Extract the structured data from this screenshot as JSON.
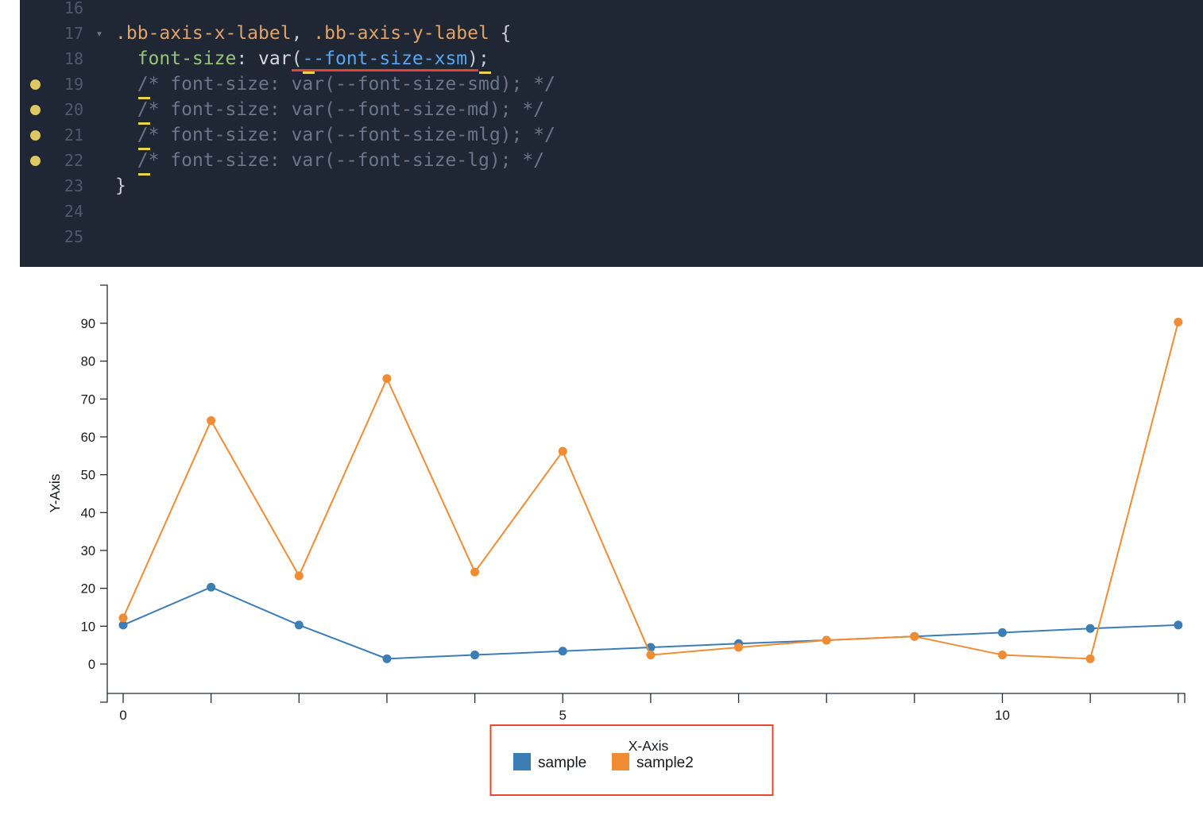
{
  "editor": {
    "colors": {
      "background": "#1e2733",
      "line_number": "#4e5a6c",
      "breakpoint_dot": "#ddc763",
      "error_underline": "#e0452f",
      "warning_underline": "#e8d44f",
      "fold_arrow": "#6e7684",
      "tokens": {
        "selector": "#e2a368",
        "punct": "#c7cdd8",
        "prop": "#98c379",
        "fn": "#d7dae0",
        "varname": "#58a6f2",
        "comment": "#6b7689"
      }
    },
    "lines": [
      {
        "number": "16",
        "tokens": []
      },
      {
        "number": "17",
        "fold": true,
        "tokens": [
          {
            "type": "selector",
            "text": ".bb-axis-x-label"
          },
          {
            "type": "punct",
            "text": ", "
          },
          {
            "type": "selector",
            "text": ".bb-axis-y-label"
          },
          {
            "type": "punct",
            "text": " {"
          }
        ]
      },
      {
        "number": "18",
        "tokens": [
          {
            "type": "prop",
            "text": "  font-size"
          },
          {
            "type": "punct",
            "text": ": "
          },
          {
            "type": "fn",
            "text": "var"
          },
          {
            "type": "punct",
            "text": "(",
            "u": [
              "red"
            ]
          },
          {
            "type": "varname",
            "text": "--",
            "u": [
              "red",
              "yellow"
            ]
          },
          {
            "type": "varname",
            "text": "font-size-xsm",
            "u": [
              "red"
            ]
          },
          {
            "type": "punct",
            "text": ")",
            "u": [
              "red"
            ]
          },
          {
            "type": "punct",
            "text": ";",
            "u": [
              "yellow"
            ]
          }
        ]
      },
      {
        "number": "19",
        "breakpoint": true,
        "tokens": [
          {
            "type": "comment",
            "text": "  "
          },
          {
            "type": "comment",
            "text": "/",
            "u": [
              "yellow"
            ]
          },
          {
            "type": "comment",
            "text": "* font-size: var(--font-size-smd); */"
          }
        ]
      },
      {
        "number": "20",
        "breakpoint": true,
        "tokens": [
          {
            "type": "comment",
            "text": "  "
          },
          {
            "type": "comment",
            "text": "/",
            "u": [
              "yellow"
            ]
          },
          {
            "type": "comment",
            "text": "* font-size: var(--font-size-md); */"
          }
        ]
      },
      {
        "number": "21",
        "breakpoint": true,
        "tokens": [
          {
            "type": "comment",
            "text": "  "
          },
          {
            "type": "comment",
            "text": "/",
            "u": [
              "yellow"
            ]
          },
          {
            "type": "comment",
            "text": "* font-size: var(--font-size-mlg); */"
          }
        ]
      },
      {
        "number": "22",
        "breakpoint": true,
        "tokens": [
          {
            "type": "comment",
            "text": "  "
          },
          {
            "type": "comment",
            "text": "/",
            "u": [
              "yellow"
            ]
          },
          {
            "type": "comment",
            "text": "* font-size: var(--font-size-lg); */"
          }
        ]
      },
      {
        "number": "23",
        "tokens": [
          {
            "type": "punct",
            "text": "}"
          }
        ]
      },
      {
        "number": "24",
        "tokens": []
      },
      {
        "number": "25",
        "tokens": []
      }
    ]
  },
  "chart_data": {
    "type": "line",
    "title": "",
    "xlabel": "X-Axis",
    "ylabel": "Y-Axis",
    "x": [
      0,
      1,
      2,
      3,
      4,
      5,
      6,
      7,
      8,
      9,
      10,
      11,
      12
    ],
    "x_tick_labels": [
      {
        "value": 0,
        "label": "0"
      },
      {
        "value": 5,
        "label": "5"
      },
      {
        "value": 10,
        "label": "10"
      }
    ],
    "y_ticks": [
      0,
      10,
      20,
      30,
      40,
      50,
      60,
      70,
      80,
      90
    ],
    "ylim": [
      0,
      94
    ],
    "grid": false,
    "legend_position": "bottom",
    "axis_color": "#262b33",
    "text_color": "#16181d",
    "legend_highlight_color": "#e8472b",
    "series": [
      {
        "name": "sample",
        "color": "#3d7db5",
        "values": [
          10.3,
          20.3,
          10.3,
          1.4,
          2.4,
          3.4,
          4.4,
          5.4,
          6.3,
          7.3,
          8.3,
          9.4,
          10.3
        ]
      },
      {
        "name": "sample2",
        "color": "#f08c33",
        "values": [
          12.2,
          64.3,
          23.3,
          75.4,
          24.3,
          56.2,
          2.4,
          4.4,
          6.3,
          7.3,
          2.4,
          1.4,
          90.3
        ]
      }
    ]
  }
}
